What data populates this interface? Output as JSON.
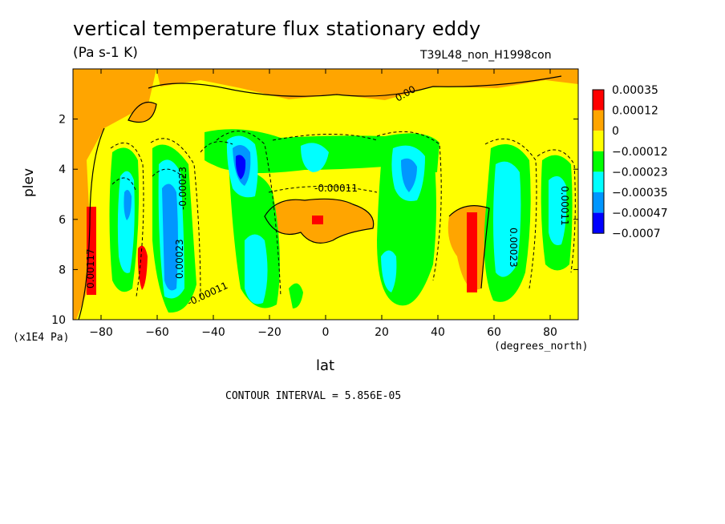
{
  "chart_data": {
    "type": "contour",
    "title": "vertical temperature flux stationary eddy",
    "units": "(Pa s-1 K)",
    "run_id": "T39L48_non_H1998con",
    "xlabel": "lat",
    "xunits": "(degrees_north)",
    "ylabel": "plev",
    "yunits": "(x1E4 Pa)",
    "contour_interval": "CONTOUR INTERVAL = 5.856E-05",
    "xlim": [
      -90,
      90
    ],
    "ylim": [
      10,
      0
    ],
    "xticks": [
      "-80",
      "-60",
      "-40",
      "-20",
      "0",
      "20",
      "40",
      "60",
      "80"
    ],
    "yticks": [
      "2",
      "4",
      "6",
      "8",
      "10"
    ],
    "legend": {
      "placement": "right",
      "levels": [
        "0.00035",
        "0.00012",
        "0",
        "-0.00012",
        "-0.00023",
        "-0.00035",
        "-0.00047",
        "-0.0007"
      ],
      "colors": [
        "#ff0000",
        "#ffa500",
        "#ffff00",
        "#00ff00",
        "#00ffff",
        "#0096ff",
        "#0000ff"
      ]
    },
    "contour_labels": [
      "0.00",
      "-0.00011",
      "0.00117",
      "-0.00023",
      "-0.00011",
      "0.00023",
      "0.00023",
      "0.00011"
    ],
    "features": [
      {
        "lat": -84,
        "plev": 7.2,
        "class": "red"
      },
      {
        "lat": -72,
        "plev": 5.5,
        "class": "cyan"
      },
      {
        "lat": -63,
        "plev": 8.0,
        "class": "red"
      },
      {
        "lat": -55,
        "plev": 6.5,
        "class": "blue"
      },
      {
        "lat": -30,
        "plev": 4.2,
        "class": "blue"
      },
      {
        "lat": -28,
        "plev": 7.5,
        "class": "cyan"
      },
      {
        "lat": -8,
        "plev": 4.0,
        "class": "cyan"
      },
      {
        "lat": -3,
        "plev": 6.2,
        "class": "red"
      },
      {
        "lat": 30,
        "plev": 4.5,
        "class": "blue"
      },
      {
        "lat": 50,
        "plev": 7.5,
        "class": "red"
      },
      {
        "lat": 63,
        "plev": 6.0,
        "class": "cyan"
      },
      {
        "lat": 82,
        "plev": 6.0,
        "class": "cyan"
      }
    ]
  }
}
